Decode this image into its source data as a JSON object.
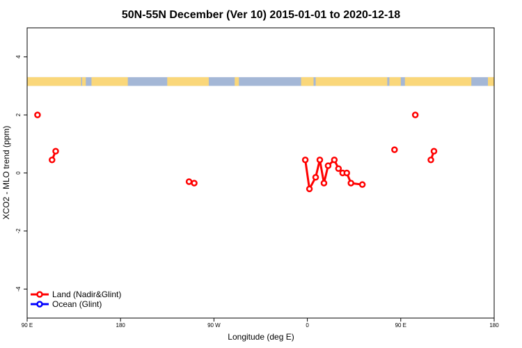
{
  "chart_data": {
    "type": "line",
    "title": "50N-55N December (Ver 10)   2015-01-01 to 2020-12-18",
    "xlabel": "Longitude (deg E)",
    "ylabel": "XCO2 - MLO trend (ppm)",
    "xlim": [
      90,
      540
    ],
    "ylim": [
      -5,
      5
    ],
    "x_ticks": [
      {
        "value": 90,
        "label": "90 E"
      },
      {
        "value": 180,
        "label": "180"
      },
      {
        "value": 270,
        "label": "90 W"
      },
      {
        "value": 360,
        "label": "0"
      },
      {
        "value": 450,
        "label": "90 E"
      },
      {
        "value": 540,
        "label": "180"
      }
    ],
    "y_ticks": [
      {
        "value": -4,
        "label": "-4"
      },
      {
        "value": -2,
        "label": "-2"
      },
      {
        "value": 0,
        "label": "0"
      },
      {
        "value": 2,
        "label": "2"
      },
      {
        "value": 4,
        "label": "4"
      }
    ],
    "series": [
      {
        "name": "Land (Nadir&Glint)",
        "color": "#ff0000",
        "x": [
          100,
          114,
          117.5,
          246,
          251,
          358,
          362,
          368,
          372,
          376,
          380,
          386,
          390,
          394,
          398,
          402,
          413,
          444,
          464,
          479,
          482
        ],
        "y": [
          2.0,
          0.45,
          0.75,
          -0.3,
          -0.35,
          0.45,
          -0.55,
          -0.15,
          0.45,
          -0.35,
          0.25,
          0.45,
          0.15,
          0.0,
          0.0,
          -0.35,
          -0.4,
          0.8,
          2.0,
          0.45,
          0.75
        ]
      },
      {
        "name": "Ocean (Glint)",
        "color": "#0000ff",
        "x": [],
        "y": []
      }
    ],
    "map_strip": {
      "y_range": [
        3.0,
        3.3
      ],
      "ocean_color": "#a4b7d6",
      "land_color": "#fad77a",
      "land_segments": [
        [
          90,
          142
        ],
        [
          143,
          146.5
        ],
        [
          152,
          187
        ],
        [
          225,
          265
        ],
        [
          290,
          294
        ],
        [
          354,
          366
        ],
        [
          368,
          437
        ],
        [
          439,
          450
        ],
        [
          454,
          518
        ],
        [
          534,
          540
        ]
      ]
    },
    "legend": {
      "position": "bottom-left",
      "entries": [
        "Land (Nadir&Glint)",
        "Ocean (Glint)"
      ]
    },
    "grid": false
  }
}
